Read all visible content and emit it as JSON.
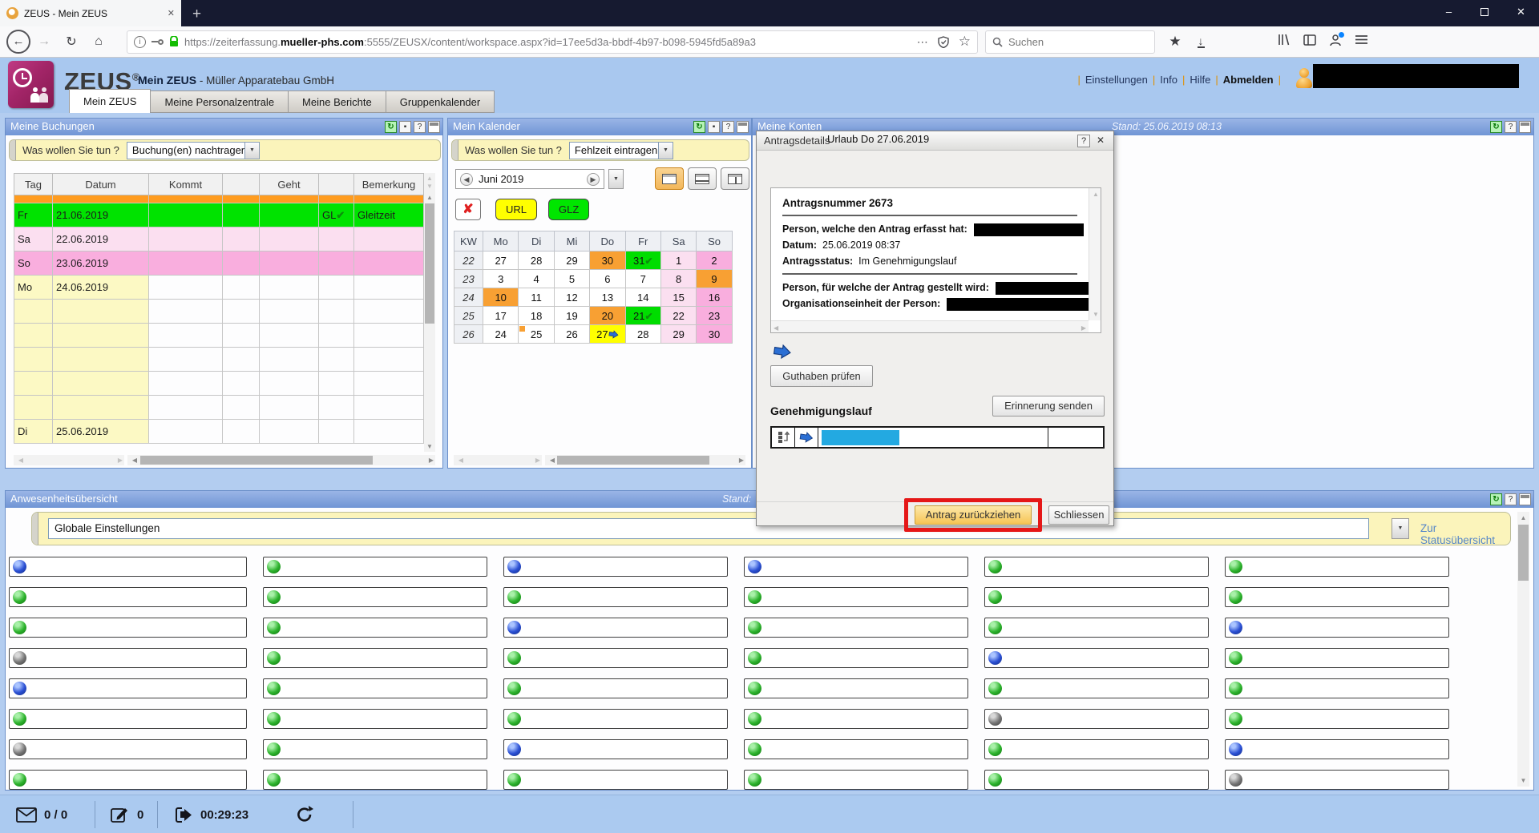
{
  "browser": {
    "tab_title": "ZEUS - Mein ZEUS",
    "new_tab_label": "+",
    "url_prefix": "https://zeiterfassung.",
    "url_domain": "mueller-phs.com",
    "url_suffix": ":5555/ZEUSX/content/workspace.aspx?id=17ee5d3a-bbdf-4b97-b098-5945fd5a89a3",
    "search_placeholder": "Suchen"
  },
  "header": {
    "logo_text": "ZEUS",
    "logo_mark": "®",
    "title_bold": "Mein ZEUS",
    "title_rest": " - Müller Apparatebau GmbH",
    "links": [
      "Einstellungen",
      "Info",
      "Hilfe",
      "Abmelden"
    ]
  },
  "app_tabs": [
    {
      "label": "Mein ZEUS",
      "active": true
    },
    {
      "label": "Meine Personalzentrale",
      "active": false
    },
    {
      "label": "Meine Berichte",
      "active": false
    },
    {
      "label": "Gruppenkalender",
      "active": false
    }
  ],
  "buchungen": {
    "title": "Meine Buchungen",
    "prompt": "Was wollen Sie tun ?",
    "dropdown_value": "Buchung(en) nachtragen",
    "columns": [
      "Tag",
      "Datum",
      "Kommt",
      "",
      "Geht",
      "",
      "Bemerkung"
    ],
    "rows": [
      {
        "tag": "Fr",
        "datum": "21.06.2019",
        "code": "GL",
        "check": true,
        "bemerkung": "Gleitzeit",
        "style": "green"
      },
      {
        "tag": "Sa",
        "datum": "22.06.2019",
        "style": "sat"
      },
      {
        "tag": "So",
        "datum": "23.06.2019",
        "style": "sun"
      },
      {
        "tag": "Mo",
        "datum": "24.06.2019",
        "style": "day"
      },
      {
        "style": "empty"
      },
      {
        "style": "empty"
      },
      {
        "style": "empty"
      },
      {
        "style": "empty"
      },
      {
        "style": "empty"
      },
      {
        "tag": "Di",
        "datum": "25.06.2019",
        "style": "day"
      }
    ]
  },
  "kalender": {
    "title": "Mein Kalender",
    "prompt": "Was wollen Sie tun ?",
    "dropdown_value": "Fehlzeit eintragen",
    "month_label": "Juni 2019",
    "delete_button": "X",
    "url_button": "URL",
    "glz_button": "GLZ",
    "columns": [
      "KW",
      "Mo",
      "Di",
      "Mi",
      "Do",
      "Fr",
      "Sa",
      "So"
    ],
    "weeks": [
      {
        "kw": "22",
        "days": [
          {
            "d": "27"
          },
          {
            "d": "28"
          },
          {
            "d": "29"
          },
          {
            "d": "30",
            "style": "orange"
          },
          {
            "d": "31",
            "style": "green",
            "check": true
          },
          {
            "d": "1",
            "style": "sat"
          },
          {
            "d": "2",
            "style": "sun"
          }
        ]
      },
      {
        "kw": "23",
        "days": [
          {
            "d": "3"
          },
          {
            "d": "4"
          },
          {
            "d": "5"
          },
          {
            "d": "6"
          },
          {
            "d": "7"
          },
          {
            "d": "8",
            "style": "sat"
          },
          {
            "d": "9",
            "style": "orange"
          }
        ]
      },
      {
        "kw": "24",
        "days": [
          {
            "d": "10",
            "style": "orange"
          },
          {
            "d": "11"
          },
          {
            "d": "12"
          },
          {
            "d": "13"
          },
          {
            "d": "14"
          },
          {
            "d": "15",
            "style": "sat"
          },
          {
            "d": "16",
            "style": "sun"
          }
        ]
      },
      {
        "kw": "25",
        "days": [
          {
            "d": "17"
          },
          {
            "d": "18"
          },
          {
            "d": "19"
          },
          {
            "d": "20",
            "style": "orange"
          },
          {
            "d": "21",
            "style": "green",
            "check": true
          },
          {
            "d": "22",
            "style": "sat"
          },
          {
            "d": "23",
            "style": "sun"
          }
        ]
      },
      {
        "kw": "26",
        "days": [
          {
            "d": "24"
          },
          {
            "d": "25",
            "marker": true
          },
          {
            "d": "26"
          },
          {
            "d": "27",
            "style": "yellow",
            "arrow": true
          },
          {
            "d": "28"
          },
          {
            "d": "29",
            "style": "sat"
          },
          {
            "d": "30",
            "style": "sun"
          }
        ]
      }
    ]
  },
  "konten": {
    "title": "Meine Konten",
    "stand": "Stand: 25.06.2019 08:13"
  },
  "modal": {
    "title": "Antragsdetails",
    "help_icon": "?",
    "antragsnummer": "Antragsnummer 2673",
    "felder": [
      {
        "label": "Person, welche den Antrag erfasst hat:",
        "redacted": true,
        "redact_w": 137
      },
      {
        "label": "Datum:",
        "value": "25.06.2019 08:37"
      },
      {
        "label": "Antragsstatus:",
        "value": "Im Genehmigungslauf"
      },
      {
        "divider": true
      },
      {
        "label": "Person, für welche der Antrag gestellt wird:",
        "redacted": true,
        "redact_w": 147
      },
      {
        "label": "Organisationseinheit der Person:",
        "redacted": true,
        "redact_w": 178
      }
    ],
    "urlaub_text": "Urlaub Do 27.06.2019",
    "guthaben_button": "Guthaben prüfen",
    "genehmigungslauf_label": "Genehmigungslauf",
    "erinnerung_button": "Erinnerung senden",
    "withdraw_button": "Antrag zurückziehen",
    "close_button": "Schliessen"
  },
  "anwesenheit": {
    "title": "Anwesenheitsübersicht",
    "stand_label": "Stand:",
    "dropdown_value": "Globale Einstellungen",
    "link": "Zur Statusübersicht",
    "status_rows": [
      [
        "blue",
        "green",
        "blue",
        "blue",
        "green",
        "green"
      ],
      [
        "green",
        "green",
        "green",
        "green",
        "green",
        "green"
      ],
      [
        "green",
        "green",
        "blue",
        "green",
        "green",
        "blue"
      ],
      [
        "gray",
        "green",
        "green",
        "green",
        "blue",
        "green"
      ],
      [
        "blue",
        "green",
        "green",
        "green",
        "green",
        "green"
      ],
      [
        "green",
        "green",
        "green",
        "green",
        "gray",
        "green"
      ],
      [
        "gray",
        "green",
        "blue",
        "green",
        "green",
        "blue"
      ],
      [
        "green",
        "green",
        "green",
        "green",
        "green",
        "gray"
      ]
    ]
  },
  "statusbar": {
    "mail_count": "0 / 0",
    "edit_count": "0",
    "session_time": "00:29:23"
  },
  "colors": {
    "accent_blue": "#7095d5",
    "highlight_red": "#e51717",
    "orange": "#ff9c1f",
    "green_row": "#00e300",
    "pink_light": "#fbdff0",
    "pink": "#f9aede",
    "pale_yellow": "#fcf9c4",
    "cyan_redaction": "#23a9e1",
    "status_green": "#2db32d",
    "status_blue": "#2b50d4",
    "status_gray": "#757575"
  }
}
